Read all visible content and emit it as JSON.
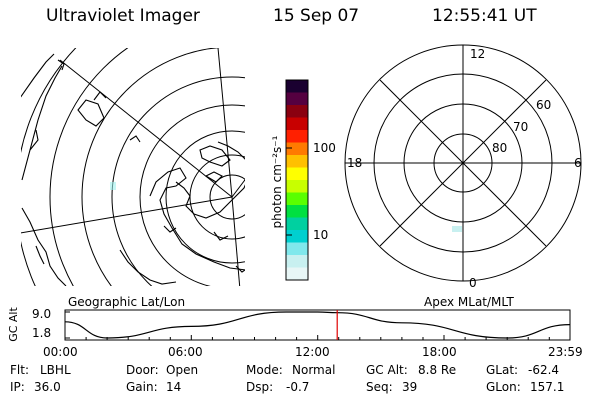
{
  "header": {
    "instrument": "Ultraviolet Imager",
    "date": "15 Sep 07",
    "time": "12:55:41 UT"
  },
  "geo_map": {
    "label": "Geographic Lat/Lon"
  },
  "polar_plot": {
    "label": "Apex MLat/MLT",
    "mlt_labels": [
      "12",
      "18",
      "6",
      "0"
    ],
    "lat_labels": [
      "60",
      "70",
      "80"
    ]
  },
  "colorbar": {
    "unit_label": "photon cm⁻²s⁻¹",
    "tick_labels": [
      "100",
      "10"
    ],
    "colors": [
      "#1a0030",
      "#550040",
      "#8a0010",
      "#c80000",
      "#ff2000",
      "#ff7a00",
      "#ffc000",
      "#ffff00",
      "#c8ff00",
      "#5aff00",
      "#00e040",
      "#00d0a0",
      "#00d0d0",
      "#80e8ec",
      "#c8f0f0",
      "#e8f6f6"
    ]
  },
  "altitude_panel": {
    "ylabel": "GC Alt",
    "y_ticks": [
      "9.0",
      "1.8"
    ],
    "x_ticks": [
      "00:00",
      "06:00",
      "12:00",
      "18:00",
      "23:59"
    ],
    "current_time_color": "#e00000"
  },
  "chart_data": {
    "type": "line",
    "xlabel": "",
    "ylabel": "GC Alt",
    "x": [
      "00:00",
      "02:00",
      "06:00",
      "10:30",
      "12:00",
      "12:56",
      "16:00",
      "21:00",
      "23:59"
    ],
    "series": [
      {
        "values": [
          6.3,
          1.8,
          5.0,
          9.0,
          9.0,
          8.8,
          6.0,
          1.8,
          5.5
        ]
      }
    ],
    "ylim": [
      1.8,
      9.0
    ]
  },
  "status": {
    "filter_label": "Flt:",
    "filter": "LBHL",
    "door_label": "Door:",
    "door": "Open",
    "mode_label": "Mode:",
    "mode": "Normal",
    "gc_alt_label": "GC Alt:",
    "gc_alt": "8.8 Re",
    "glat_label": "GLat:",
    "glat": "-62.4",
    "ip_label": "IP:",
    "ip": "36.0",
    "gain_label": "Gain:",
    "gain": "14",
    "dsp_label": "Dsp:",
    "dsp": "-0.7",
    "seq_label": "Seq:",
    "seq": "39",
    "glon_label": "GLon:",
    "glon": "157.1"
  }
}
